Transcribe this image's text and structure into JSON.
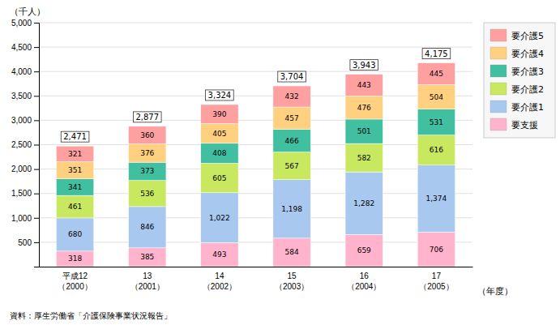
{
  "chart_data": {
    "type": "bar",
    "stacked": true,
    "categories": [
      "平成12\n（2000）",
      "13\n（2001）",
      "14\n（2002）",
      "15\n（2003）",
      "16\n（2004）",
      "17\n（2005）"
    ],
    "series": [
      {
        "name": "要支援",
        "color": "#ffb3cc",
        "values": [
          318,
          385,
          493,
          584,
          659,
          706
        ]
      },
      {
        "name": "要介護1",
        "color": "#a8c8f0",
        "values": [
          680,
          846,
          1022,
          1198,
          1282,
          1374
        ],
        "value_labels": [
          "680",
          "846",
          "1,022",
          "1,198",
          "1,282",
          "1,374"
        ]
      },
      {
        "name": "要介護2",
        "color": "#c8e860",
        "values": [
          461,
          536,
          605,
          567,
          582,
          616
        ]
      },
      {
        "name": "要介護3",
        "color": "#40c0a0",
        "values": [
          341,
          373,
          408,
          466,
          501,
          531
        ]
      },
      {
        "name": "要介護4",
        "color": "#ffd080",
        "values": [
          351,
          376,
          405,
          457,
          476,
          504
        ]
      },
      {
        "name": "要介護5",
        "color": "#ffa0a0",
        "values": [
          321,
          360,
          390,
          432,
          443,
          445
        ]
      }
    ],
    "totals": [
      2471,
      2877,
      3324,
      3704,
      3943,
      4175
    ],
    "total_labels": [
      "2,471",
      "2,877",
      "3,324",
      "3,704",
      "3,943",
      "4,175"
    ],
    "data_labels": true,
    "xlabel": "（年度）",
    "ylabel": "（千人）",
    "source": "資料：厚生労働省「介護保険事業状況報告」",
    "ylim": [
      0,
      5000
    ],
    "yticks": [
      500,
      {
        "value": 1000,
        "label": "1,000"
      },
      {
        "value": 1500,
        "label": "1,500"
      },
      {
        "value": 2000,
        "label": "2,000"
      },
      {
        "value": 2500,
        "label": "2,500"
      },
      {
        "value": 3000,
        "label": "3,000"
      },
      {
        "value": 3500,
        "label": "3,500"
      },
      {
        "value": 4000,
        "label": "4,000"
      },
      {
        "value": 4500,
        "label": "4,500"
      },
      {
        "value": 5000,
        "label": "5,000"
      }
    ],
    "grid": true,
    "legend": "right"
  }
}
